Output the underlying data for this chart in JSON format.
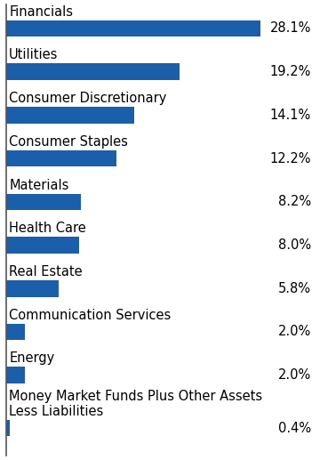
{
  "categories": [
    "Financials",
    "Utilities",
    "Consumer Discretionary",
    "Consumer Staples",
    "Materials",
    "Health Care",
    "Real Estate",
    "Communication Services",
    "Energy",
    "Money Market Funds Plus Other Assets\nLess Liabilities"
  ],
  "values": [
    28.1,
    19.2,
    14.1,
    12.2,
    8.2,
    8.0,
    5.8,
    2.0,
    2.0,
    0.4
  ],
  "bar_color": "#1B5FAA",
  "label_color": "#000000",
  "background_color": "#ffffff",
  "bar_height": 0.38,
  "xlim": [
    0,
    34
  ],
  "label_fontsize": 10.5,
  "value_fontsize": 10.5,
  "left_border_color": "#555555"
}
